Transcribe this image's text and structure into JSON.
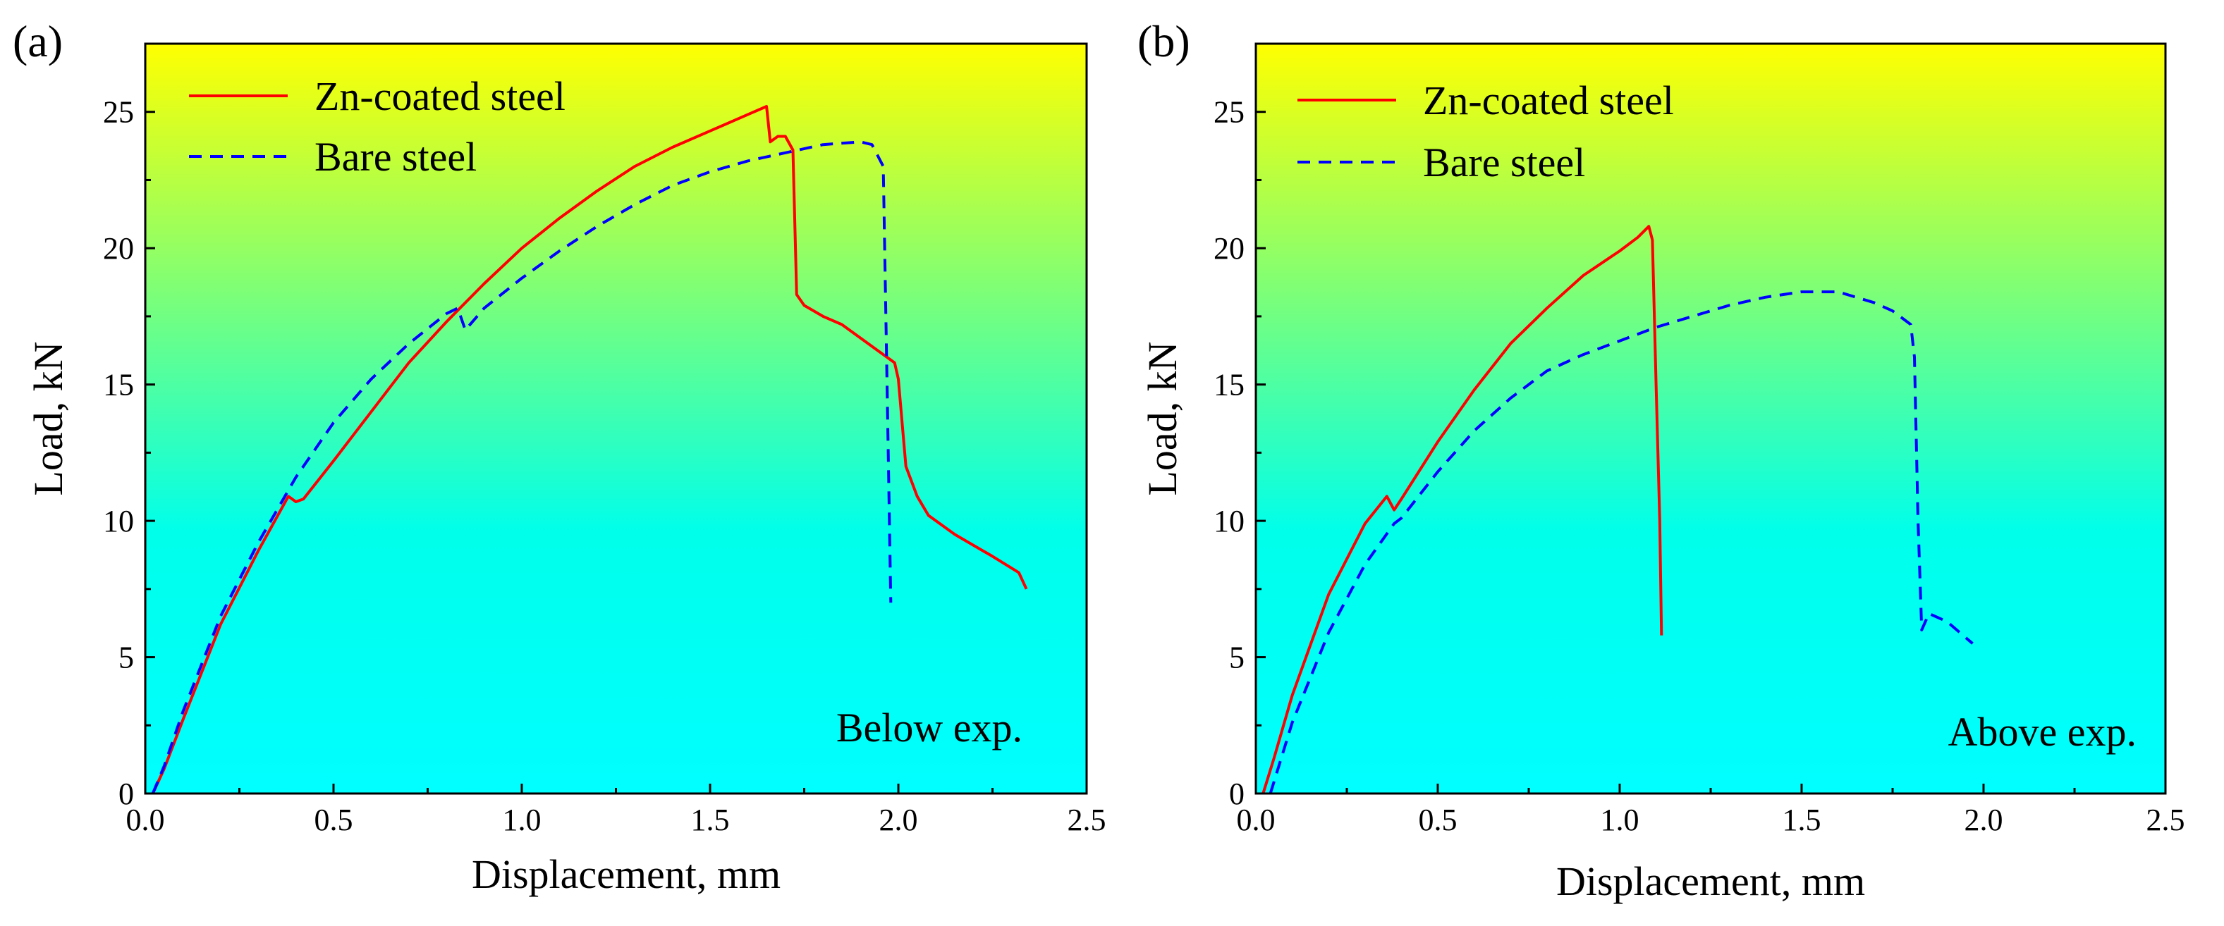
{
  "chart_data": [
    {
      "type": "line",
      "panel_label": "(a)",
      "xlabel": "Displacement, mm",
      "ylabel": "Load, kN",
      "xlim": [
        0,
        2.5
      ],
      "ylim": [
        0,
        27.5
      ],
      "xticks": [
        0.0,
        0.5,
        1.0,
        1.5,
        2.0,
        2.5
      ],
      "xtick_labels": [
        "0.0",
        "0.5",
        "1.0",
        "1.5",
        "2.0",
        "2.5"
      ],
      "yticks": [
        0,
        5,
        10,
        15,
        20,
        25
      ],
      "ytick_labels": [
        "0",
        "5",
        "10",
        "15",
        "20",
        "25"
      ],
      "annotation": "Below exp.",
      "background_gradient": [
        "#ffff00",
        "#00ffea",
        "#00ffff"
      ],
      "series": [
        {
          "name": "Zn-coated steel",
          "color": "#ff0000",
          "style": "solid",
          "points": [
            [
              0.02,
              0
            ],
            [
              0.05,
              0.9
            ],
            [
              0.1,
              2.7
            ],
            [
              0.2,
              6.2
            ],
            [
              0.3,
              8.9
            ],
            [
              0.38,
              10.9
            ],
            [
              0.4,
              10.7
            ],
            [
              0.42,
              10.8
            ],
            [
              0.5,
              12.2
            ],
            [
              0.6,
              14.0
            ],
            [
              0.7,
              15.8
            ],
            [
              0.8,
              17.3
            ],
            [
              0.9,
              18.7
            ],
            [
              1.0,
              20.0
            ],
            [
              1.1,
              21.1
            ],
            [
              1.2,
              22.1
            ],
            [
              1.3,
              23.0
            ],
            [
              1.4,
              23.7
            ],
            [
              1.5,
              24.3
            ],
            [
              1.6,
              24.9
            ],
            [
              1.65,
              25.2
            ],
            [
              1.66,
              23.9
            ],
            [
              1.68,
              24.1
            ],
            [
              1.7,
              24.1
            ],
            [
              1.72,
              23.6
            ],
            [
              1.73,
              18.3
            ],
            [
              1.75,
              17.9
            ],
            [
              1.8,
              17.5
            ],
            [
              1.85,
              17.2
            ],
            [
              1.9,
              16.7
            ],
            [
              1.95,
              16.2
            ],
            [
              1.99,
              15.8
            ],
            [
              2.0,
              15.2
            ],
            [
              2.02,
              12.0
            ],
            [
              2.05,
              10.9
            ],
            [
              2.08,
              10.2
            ],
            [
              2.15,
              9.5
            ],
            [
              2.25,
              8.7
            ],
            [
              2.32,
              8.1
            ],
            [
              2.34,
              7.5
            ]
          ]
        },
        {
          "name": "Bare steel",
          "color": "#0000ff",
          "style": "dashed",
          "points": [
            [
              0.02,
              0
            ],
            [
              0.05,
              1.0
            ],
            [
              0.1,
              3.0
            ],
            [
              0.2,
              6.5
            ],
            [
              0.3,
              9.2
            ],
            [
              0.4,
              11.6
            ],
            [
              0.5,
              13.6
            ],
            [
              0.6,
              15.2
            ],
            [
              0.7,
              16.5
            ],
            [
              0.8,
              17.6
            ],
            [
              0.83,
              17.8
            ],
            [
              0.85,
              17.0
            ],
            [
              0.9,
              17.8
            ],
            [
              1.0,
              18.9
            ],
            [
              1.1,
              19.9
            ],
            [
              1.2,
              20.8
            ],
            [
              1.3,
              21.6
            ],
            [
              1.4,
              22.3
            ],
            [
              1.5,
              22.8
            ],
            [
              1.6,
              23.2
            ],
            [
              1.7,
              23.5
            ],
            [
              1.8,
              23.8
            ],
            [
              1.9,
              23.9
            ],
            [
              1.93,
              23.8
            ],
            [
              1.96,
              23.0
            ],
            [
              1.97,
              15.0
            ],
            [
              1.98,
              7.0
            ]
          ]
        }
      ]
    },
    {
      "type": "line",
      "panel_label": "(b)",
      "xlabel": "Displacement, mm",
      "ylabel": "Load, kN",
      "xlim": [
        0,
        2.5
      ],
      "ylim": [
        0,
        27.5
      ],
      "xticks": [
        0.0,
        0.5,
        1.0,
        1.5,
        2.0,
        2.5
      ],
      "xtick_labels": [
        "0.0",
        "0.5",
        "1.0",
        "1.5",
        "2.0",
        "2.5"
      ],
      "yticks": [
        0,
        5,
        10,
        15,
        20,
        25
      ],
      "ytick_labels": [
        "0",
        "5",
        "10",
        "15",
        "20",
        "25"
      ],
      "annotation": "Above exp.",
      "background_gradient": [
        "#ffff00",
        "#00ffea",
        "#00ffff"
      ],
      "series": [
        {
          "name": "Zn-coated steel",
          "color": "#ff0000",
          "style": "solid",
          "points": [
            [
              0.02,
              0
            ],
            [
              0.05,
              1.3
            ],
            [
              0.1,
              3.6
            ],
            [
              0.2,
              7.3
            ],
            [
              0.3,
              9.9
            ],
            [
              0.36,
              10.9
            ],
            [
              0.38,
              10.4
            ],
            [
              0.4,
              10.8
            ],
            [
              0.5,
              12.9
            ],
            [
              0.6,
              14.8
            ],
            [
              0.7,
              16.5
            ],
            [
              0.8,
              17.8
            ],
            [
              0.9,
              19.0
            ],
            [
              1.0,
              19.9
            ],
            [
              1.05,
              20.4
            ],
            [
              1.08,
              20.8
            ],
            [
              1.09,
              20.3
            ],
            [
              1.1,
              15.0
            ],
            [
              1.11,
              10.0
            ],
            [
              1.115,
              5.8
            ]
          ]
        },
        {
          "name": "Bare steel",
          "color": "#0000ff",
          "style": "dashed",
          "points": [
            [
              0.04,
              0
            ],
            [
              0.1,
              2.6
            ],
            [
              0.2,
              5.9
            ],
            [
              0.3,
              8.4
            ],
            [
              0.38,
              9.9
            ],
            [
              0.4,
              10.1
            ],
            [
              0.5,
              11.8
            ],
            [
              0.6,
              13.3
            ],
            [
              0.7,
              14.5
            ],
            [
              0.8,
              15.5
            ],
            [
              0.9,
              16.1
            ],
            [
              1.0,
              16.6
            ],
            [
              1.1,
              17.1
            ],
            [
              1.2,
              17.5
            ],
            [
              1.3,
              17.9
            ],
            [
              1.4,
              18.2
            ],
            [
              1.5,
              18.4
            ],
            [
              1.6,
              18.4
            ],
            [
              1.7,
              18.0
            ],
            [
              1.75,
              17.7
            ],
            [
              1.8,
              17.2
            ],
            [
              1.81,
              16.0
            ],
            [
              1.82,
              10.0
            ],
            [
              1.83,
              6.0
            ],
            [
              1.85,
              6.6
            ],
            [
              1.9,
              6.3
            ],
            [
              1.97,
              5.5
            ]
          ]
        }
      ]
    }
  ]
}
